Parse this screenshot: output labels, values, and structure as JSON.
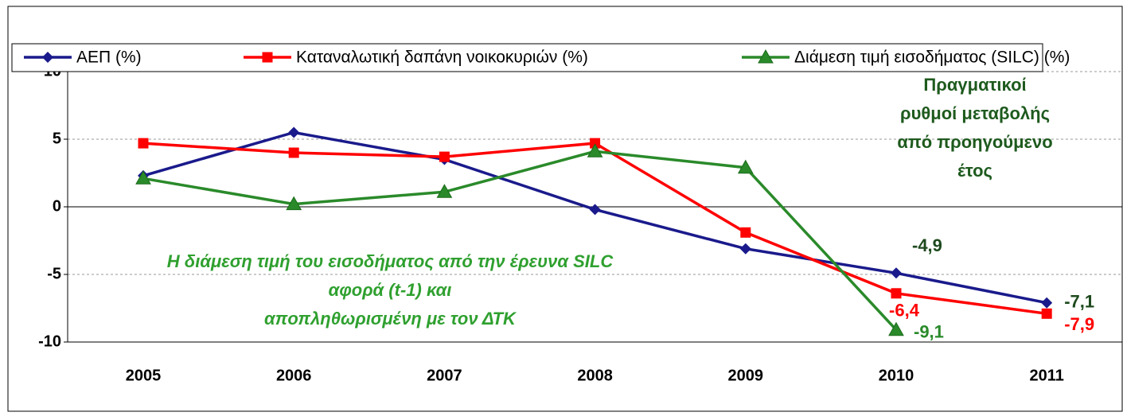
{
  "chart_data": {
    "type": "line",
    "categories": [
      "2005",
      "2006",
      "2007",
      "2008",
      "2009",
      "2010",
      "2011"
    ],
    "series": [
      {
        "name": "ΑΕΠ (%)",
        "color": "#1a1a8c",
        "marker": "diamond",
        "label_color": "#1e4a1e",
        "values": [
          2.3,
          5.5,
          3.5,
          -0.2,
          -3.1,
          -4.9,
          -7.1
        ],
        "value_labels": [
          null,
          null,
          null,
          null,
          null,
          "-4,9",
          "-7,1"
        ]
      },
      {
        "name": "Καταναλωτική δαπάνη νοικοκυριών (%)",
        "color": "#ff0000",
        "marker": "square",
        "label_color": "#ff0000",
        "values": [
          4.7,
          4.0,
          3.7,
          4.7,
          -1.9,
          -6.4,
          -7.9
        ],
        "value_labels": [
          null,
          null,
          null,
          null,
          null,
          "-6,4",
          "-7,9"
        ]
      },
      {
        "name": "Διάμεση τιμή εισοδήματος (SILC) (%)",
        "color": "#2a8a2a",
        "marker": "triangle",
        "label_color": "#2a8a2a",
        "values": [
          2.1,
          0.2,
          1.1,
          4.1,
          2.9,
          -9.1,
          null
        ],
        "value_labels": [
          null,
          null,
          null,
          null,
          null,
          "-9,1",
          null
        ]
      }
    ],
    "ylim": [
      -10,
      10
    ],
    "yticks": [
      -10,
      -5,
      0,
      5,
      10
    ],
    "grid": true,
    "legend": "top",
    "annotations": [
      {
        "lines": [
          "Πραγματικοί",
          "ρυθμοί μεταβολής",
          "από προηγούμενο",
          "έτος"
        ],
        "color": "#1e5a1e",
        "italic": false
      },
      {
        "lines": [
          "Η διάμεση τιμή του εισοδήματος από την έρευνα SILC",
          "αφορά (t-1) και",
          "αποπληθωρισμένη με τον ΔΤΚ"
        ],
        "color": "#2fa02f",
        "italic": true
      }
    ]
  }
}
